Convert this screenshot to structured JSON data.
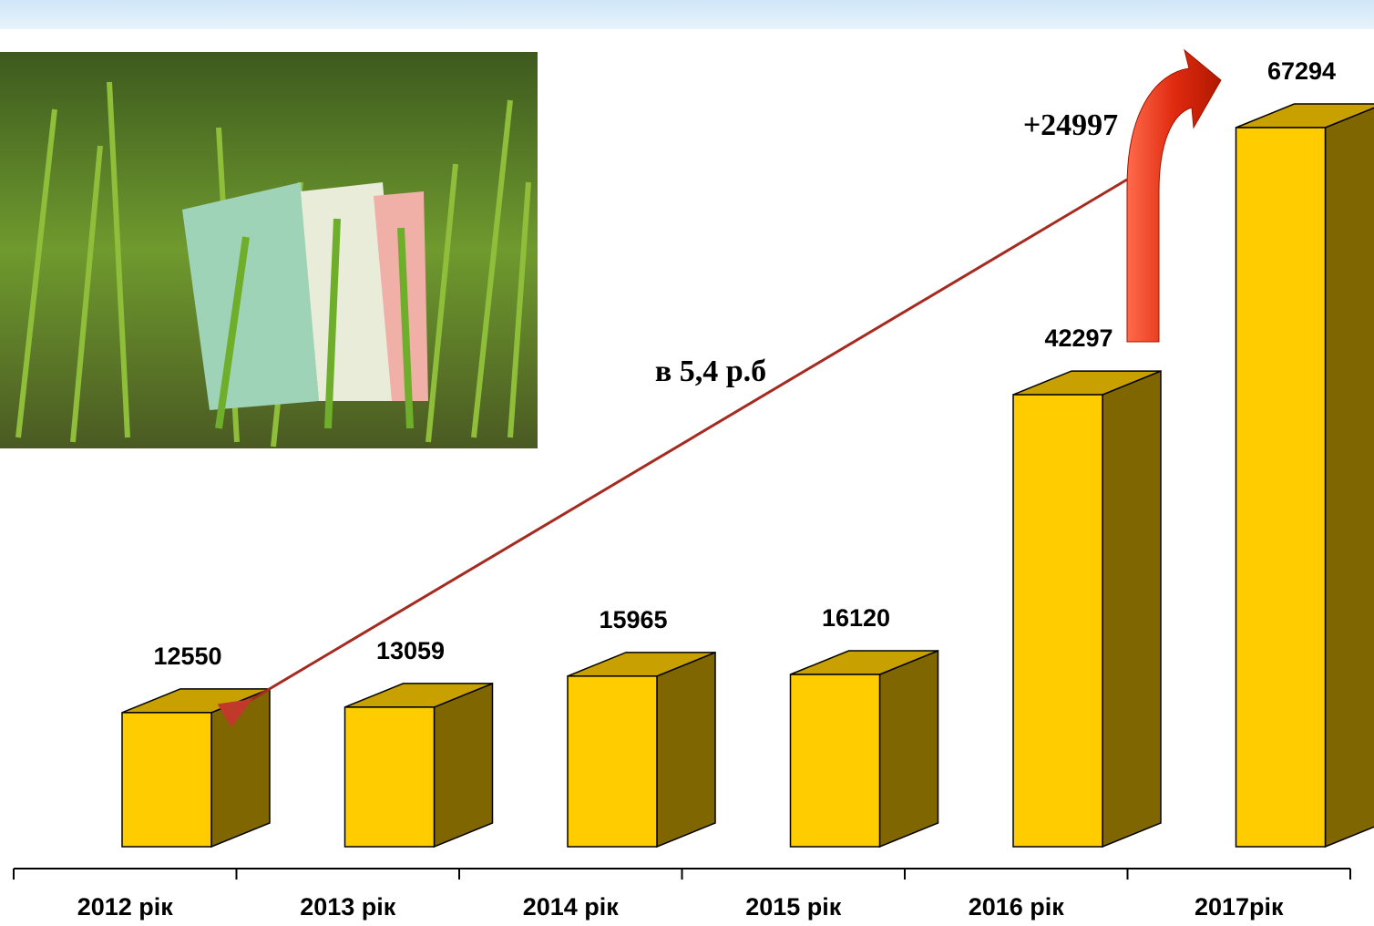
{
  "chart_data": {
    "type": "bar3d",
    "categories": [
      "2012 рік",
      "2013 рік",
      "2014 рік",
      "2015 рік",
      "2016 рік",
      "2017рік"
    ],
    "values": [
      12550,
      13059,
      15965,
      16120,
      42297,
      67294
    ],
    "color": "#ffcc00",
    "annotations": [
      "+24997",
      "в 5,4 р.б"
    ]
  }
}
